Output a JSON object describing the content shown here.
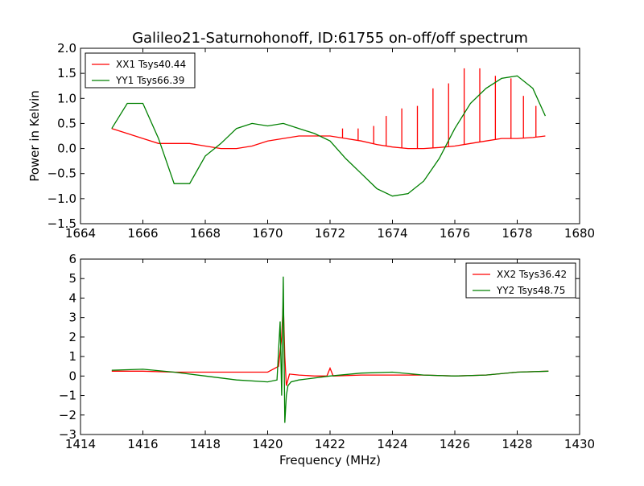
{
  "page": {
    "title": "Galileo21-Saturnohonoff, ID:61755 on-off/off spectrum"
  },
  "chart_data": [
    {
      "type": "line",
      "ylabel": "Power in Kelvin",
      "xlabel": "",
      "xlim": [
        1664,
        1680
      ],
      "ylim": [
        -1.5,
        2.0
      ],
      "xticks": [
        "1664",
        "1666",
        "1668",
        "1670",
        "1672",
        "1674",
        "1676",
        "1678",
        "1680"
      ],
      "yticks": [
        "−1.5",
        "−1.0",
        "−0.5",
        "0.0",
        "0.5",
        "1.0",
        "1.5",
        "2.0"
      ],
      "legend_position": "top-left",
      "series": [
        {
          "name": "XX1 Tsys40.44",
          "color": "#ff0000",
          "x": [
            1665.0,
            1665.5,
            1666.0,
            1666.5,
            1667.0,
            1667.5,
            1668.0,
            1668.5,
            1669.0,
            1669.5,
            1670.0,
            1670.5,
            1671.0,
            1671.5,
            1672.0,
            1672.5,
            1673.0,
            1673.5,
            1674.0,
            1674.5,
            1675.0,
            1675.5,
            1676.0,
            1676.5,
            1677.0,
            1677.5,
            1678.0,
            1678.5,
            1678.9
          ],
          "y": [
            0.4,
            0.3,
            0.2,
            0.1,
            0.1,
            0.1,
            0.05,
            0.0,
            0.0,
            0.05,
            0.15,
            0.2,
            0.25,
            0.25,
            0.25,
            0.2,
            0.15,
            0.08,
            0.03,
            0.0,
            0.0,
            0.02,
            0.05,
            0.1,
            0.15,
            0.2,
            0.2,
            0.22,
            0.25
          ],
          "spikes": [
            {
              "x": 1672.4,
              "y": 0.4
            },
            {
              "x": 1672.9,
              "y": 0.4
            },
            {
              "x": 1673.4,
              "y": 0.45
            },
            {
              "x": 1673.8,
              "y": 0.65
            },
            {
              "x": 1674.3,
              "y": 0.8
            },
            {
              "x": 1674.8,
              "y": 0.85
            },
            {
              "x": 1675.3,
              "y": 1.2
            },
            {
              "x": 1675.8,
              "y": 1.3
            },
            {
              "x": 1676.3,
              "y": 1.6
            },
            {
              "x": 1676.8,
              "y": 1.6
            },
            {
              "x": 1677.3,
              "y": 1.45
            },
            {
              "x": 1677.8,
              "y": 1.4
            },
            {
              "x": 1678.2,
              "y": 1.05
            },
            {
              "x": 1678.6,
              "y": 0.85
            }
          ]
        },
        {
          "name": "YY1 Tsys66.39",
          "color": "#008000",
          "x": [
            1665.0,
            1665.5,
            1666.0,
            1666.5,
            1667.0,
            1667.5,
            1668.0,
            1668.5,
            1669.0,
            1669.5,
            1670.0,
            1670.5,
            1671.0,
            1671.5,
            1672.0,
            1672.5,
            1673.0,
            1673.5,
            1674.0,
            1674.5,
            1675.0,
            1675.5,
            1676.0,
            1676.5,
            1677.0,
            1677.5,
            1678.0,
            1678.5,
            1678.9
          ],
          "y": [
            0.4,
            0.9,
            0.9,
            0.2,
            -0.7,
            -0.7,
            -0.15,
            0.1,
            0.4,
            0.5,
            0.45,
            0.5,
            0.4,
            0.3,
            0.15,
            -0.2,
            -0.5,
            -0.8,
            -0.95,
            -0.9,
            -0.65,
            -0.2,
            0.4,
            0.9,
            1.2,
            1.4,
            1.45,
            1.2,
            0.65
          ]
        }
      ]
    },
    {
      "type": "line",
      "ylabel": "",
      "xlabel": "Frequency (MHz)",
      "xlim": [
        1414,
        1430
      ],
      "ylim": [
        -3,
        6
      ],
      "xticks": [
        "1414",
        "1416",
        "1418",
        "1420",
        "1422",
        "1424",
        "1426",
        "1428",
        "1430"
      ],
      "yticks": [
        "−3",
        "−2",
        "−1",
        "0",
        "1",
        "2",
        "3",
        "4",
        "5",
        "6"
      ],
      "legend_position": "top-right",
      "series": [
        {
          "name": "XX2 Tsys36.42",
          "color": "#ff0000",
          "x": [
            1415.0,
            1416.0,
            1417.0,
            1418.0,
            1419.0,
            1420.0,
            1420.35,
            1420.45,
            1420.5,
            1420.55,
            1420.6,
            1420.7,
            1421.0,
            1421.5,
            1421.9,
            1422.0,
            1422.1,
            1423.0,
            1424.0,
            1425.0,
            1426.0,
            1427.0,
            1428.0,
            1429.0
          ],
          "y": [
            0.25,
            0.25,
            0.2,
            0.2,
            0.2,
            0.2,
            0.5,
            2.0,
            3.8,
            1.0,
            -0.5,
            0.1,
            0.05,
            0.0,
            0.0,
            0.4,
            0.0,
            0.05,
            0.05,
            0.05,
            0.0,
            0.05,
            0.2,
            0.25
          ]
        },
        {
          "name": "YY2 Tsys48.75",
          "color": "#008000",
          "x": [
            1415.0,
            1416.0,
            1417.0,
            1418.0,
            1419.0,
            1420.0,
            1420.3,
            1420.4,
            1420.45,
            1420.5,
            1420.55,
            1420.6,
            1420.65,
            1420.75,
            1421.0,
            1422.0,
            1423.0,
            1424.0,
            1425.0,
            1426.0,
            1427.0,
            1428.0,
            1429.0
          ],
          "y": [
            0.3,
            0.35,
            0.2,
            0.0,
            -0.2,
            -0.3,
            -0.2,
            2.8,
            -1.0,
            5.1,
            -2.4,
            -1.0,
            -0.5,
            -0.3,
            -0.2,
            0.0,
            0.15,
            0.2,
            0.05,
            0.0,
            0.05,
            0.2,
            0.25
          ]
        }
      ]
    }
  ]
}
